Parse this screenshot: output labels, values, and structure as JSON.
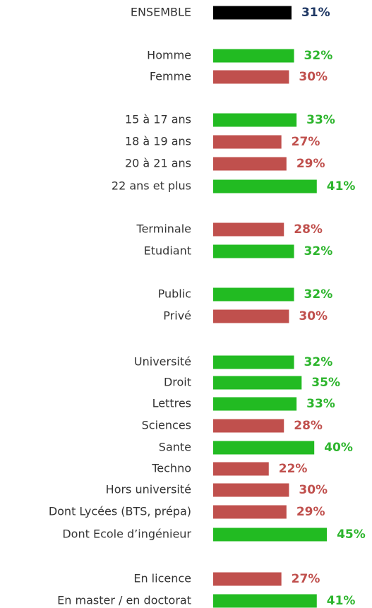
{
  "chart_data": {
    "type": "bar",
    "orientation": "horizontal",
    "categories": [
      "ENSEMBLE",
      "Homme",
      "Femme",
      "15 à 17 ans",
      "18 à 19 ans",
      "20 à 21 ans",
      "22 ans et plus",
      "Terminale",
      "Etudiant",
      "Public",
      "Privé",
      "Université",
      "Droit",
      "Lettres",
      "Sciences",
      "Sante",
      "Techno",
      "Hors université",
      "Dont Lycées (BTS, prépa)",
      "Dont Ecole d’ingénieur",
      "En licence",
      "En master / en doctorat"
    ],
    "values": [
      31,
      32,
      30,
      33,
      27,
      29,
      41,
      28,
      32,
      32,
      30,
      32,
      35,
      33,
      28,
      40,
      22,
      30,
      29,
      45,
      27,
      41
    ],
    "value_labels": [
      "31%",
      "32%",
      "30%",
      "33%",
      "27%",
      "29%",
      "41%",
      "28%",
      "32%",
      "32%",
      "30%",
      "32%",
      "35%",
      "33%",
      "28%",
      "40%",
      "22%",
      "30%",
      "29%",
      "45%",
      "27%",
      "41%"
    ],
    "colors": [
      "#000000",
      "#22bb22",
      "#c0504d",
      "#22bb22",
      "#c0504d",
      "#c0504d",
      "#22bb22",
      "#c0504d",
      "#22bb22",
      "#22bb22",
      "#c0504d",
      "#22bb22",
      "#22bb22",
      "#22bb22",
      "#c0504d",
      "#22bb22",
      "#c0504d",
      "#c0504d",
      "#c0504d",
      "#22bb22",
      "#c0504d",
      "#22bb22"
    ],
    "label_colors": [
      "#1f3864",
      "#2db52d",
      "#c0504d",
      "#2db52d",
      "#c0504d",
      "#c0504d",
      "#2db52d",
      "#c0504d",
      "#2db52d",
      "#2db52d",
      "#c0504d",
      "#2db52d",
      "#2db52d",
      "#2db52d",
      "#c0504d",
      "#2db52d",
      "#c0504d",
      "#c0504d",
      "#c0504d",
      "#2db52d",
      "#c0504d",
      "#2db52d"
    ]
  }
}
